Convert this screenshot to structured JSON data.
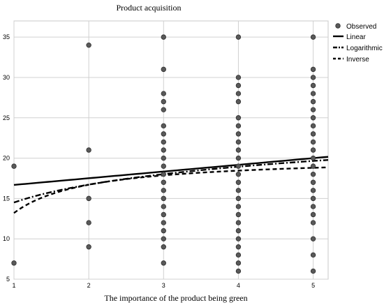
{
  "chart_data": {
    "type": "scatter",
    "title": "Product acquisition",
    "xlabel": "The importance of the product being green",
    "ylabel": "",
    "xlim": [
      1,
      5.2
    ],
    "ylim": [
      5,
      37
    ],
    "xticks": [
      1,
      2,
      3,
      4,
      5
    ],
    "yticks": [
      5,
      10,
      15,
      20,
      25,
      30,
      35
    ],
    "grid": true,
    "legend_position": "top-right",
    "legend": [
      "Observed",
      "Linear",
      "Logarithmic",
      "Inverse"
    ],
    "observed": [
      {
        "x": 1,
        "ys": [
          7,
          19
        ]
      },
      {
        "x": 2,
        "ys": [
          9,
          12,
          15,
          21,
          34
        ]
      },
      {
        "x": 3,
        "ys": [
          7,
          9,
          10,
          11,
          12,
          13,
          14,
          15,
          16,
          17,
          18,
          19,
          20,
          21,
          22,
          23,
          24,
          26,
          27,
          28,
          31,
          35
        ]
      },
      {
        "x": 4,
        "ys": [
          6,
          7,
          8,
          9,
          10,
          11,
          12,
          13,
          14,
          15,
          16,
          17,
          18,
          19,
          20,
          21,
          22,
          23,
          24,
          25,
          27,
          28,
          29,
          30,
          35
        ]
      },
      {
        "x": 5,
        "ys": [
          6,
          8,
          10,
          12,
          13,
          14,
          15,
          16,
          17,
          18,
          19,
          20,
          21,
          22,
          23,
          24,
          25,
          26,
          27,
          28,
          29,
          30,
          31,
          35
        ]
      }
    ],
    "series": [
      {
        "name": "Linear",
        "model": "linear",
        "b0": 15.85,
        "b1": 0.83
      },
      {
        "name": "Logarithmic",
        "model": "log",
        "b0": 14.5,
        "b1": 3.2
      },
      {
        "name": "Inverse",
        "model": "inverse",
        "b0": 20.2,
        "b1": -7.0
      }
    ]
  }
}
